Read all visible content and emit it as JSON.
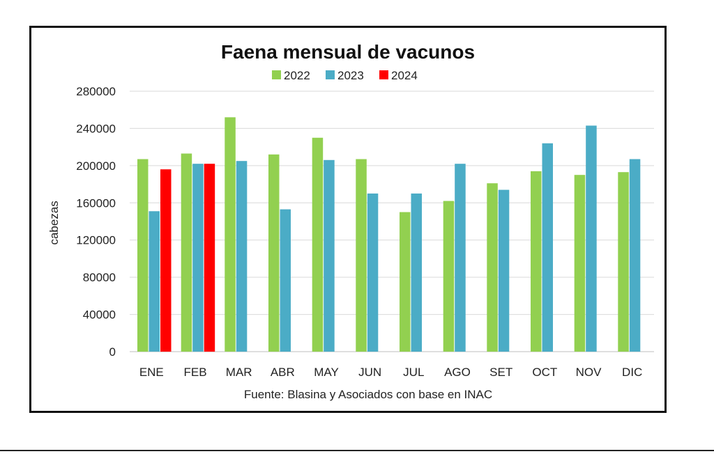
{
  "chart_data": {
    "type": "bar",
    "title": "Faena mensual de vacunos",
    "ylabel": "cabezas",
    "xlabel": "",
    "source": "Fuente: Blasina y Asociados con base en INAC",
    "categories": [
      "ENE",
      "FEB",
      "MAR",
      "ABR",
      "MAY",
      "JUN",
      "JUL",
      "AGO",
      "SET",
      "OCT",
      "NOV",
      "DIC"
    ],
    "ylim": [
      0,
      280000
    ],
    "yticks": [
      "0",
      "40000",
      "80000",
      "120000",
      "160000",
      "200000",
      "240000",
      "280000"
    ],
    "grid": true,
    "legend_position": "top",
    "series": [
      {
        "name": "2022",
        "color": "#92d050",
        "values": [
          207000,
          213000,
          252000,
          212000,
          230000,
          207000,
          150000,
          162000,
          181000,
          194000,
          190000,
          193000
        ]
      },
      {
        "name": "2023",
        "color": "#4bacc6",
        "values": [
          151000,
          202000,
          205000,
          153000,
          206000,
          170000,
          170000,
          202000,
          174000,
          224000,
          243000,
          207000
        ]
      },
      {
        "name": "2024",
        "color": "#ff0000",
        "values": [
          196000,
          202000,
          null,
          null,
          null,
          null,
          null,
          null,
          null,
          null,
          null,
          null
        ]
      }
    ]
  }
}
